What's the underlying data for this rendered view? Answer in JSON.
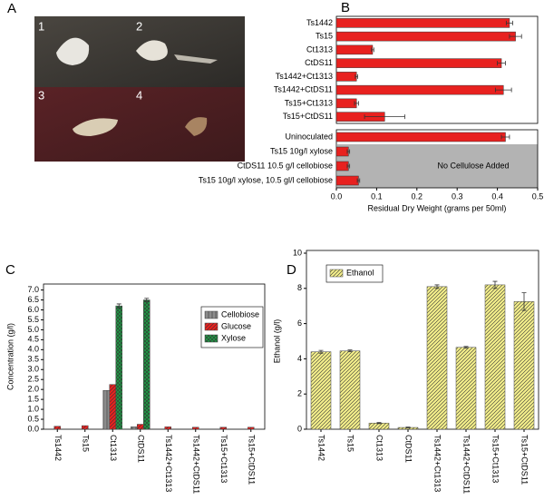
{
  "photo": {
    "panel": "A",
    "labels": [
      "1",
      "2",
      "3",
      "4"
    ]
  },
  "chart_data": [
    {
      "type": "hbar",
      "panel": "B",
      "x_label": "Residual Dry Weight (grams per 50ml)",
      "categories": [
        "Ts1442",
        "Ts15",
        "Ct1313",
        "CtDS11",
        "Ts1442+Ct1313",
        "Ts1442+CtDS11",
        "Ts15+Ct1313",
        "Ts15+CtDS11",
        "Uninoculated",
        "Ts15 10g/l xylose",
        "CtDS11 10.5 g/l cellobiose",
        "Ts15 10g/l xylose, 10.5 gl/l cellobiose"
      ],
      "series": [
        {
          "name": "Residual Dry Weight",
          "color": "#e8211f",
          "values": [
            0.43,
            0.445,
            0.09,
            0.41,
            0.05,
            0.415,
            0.05,
            0.12,
            0.42,
            0.03,
            0.03,
            0.055
          ],
          "errors": [
            0.008,
            0.015,
            0.003,
            0.01,
            0.003,
            0.02,
            0.005,
            0.05,
            0.01,
            0.003,
            0.003,
            0.003
          ]
        }
      ],
      "annotation": "No Cellulose Added",
      "xlim": [
        0,
        0.5
      ],
      "xticks": [
        {
          "value": 0,
          "label": "0.0"
        },
        0.1,
        0.2,
        0.3,
        0.4,
        0.5
      ]
    },
    {
      "type": "bar",
      "panel": "C",
      "y_label": "Concentration (g/l)",
      "categories": [
        "Ts1442",
        "Ts15",
        "Ct1313",
        "CtDS11",
        "Ts1442+Ct1313",
        "Ts1442+CtDS11",
        "Ts15+Ct1313",
        "Ts15+CtDS11"
      ],
      "series": [
        {
          "name": "Cellobiose",
          "color": "#8c8c8c",
          "hatch": "vertical",
          "values": [
            null,
            null,
            1.95,
            0.12,
            null,
            null,
            null,
            null
          ]
        },
        {
          "name": "Glucose",
          "color": "#e8211f",
          "hatch": "diagonal",
          "values": [
            0.15,
            0.18,
            2.25,
            0.25,
            0.12,
            0.1,
            0.1,
            0.1
          ]
        },
        {
          "name": "Xylose",
          "color": "#1f9a45",
          "hatch": "cross",
          "values": [
            null,
            null,
            6.2,
            6.5,
            null,
            null,
            null,
            null
          ],
          "errors": [
            null,
            null,
            0.1,
            0.08,
            null,
            null,
            null,
            null
          ]
        }
      ],
      "ylim": [
        0,
        7.3
      ],
      "yticks": [
        {
          "value": 0,
          "label": "0.0"
        },
        0.5,
        {
          "value": 1,
          "label": "1.0"
        },
        1.5,
        {
          "value": 2,
          "label": "2.0"
        },
        2.5,
        {
          "value": 3,
          "label": "3.0"
        },
        3.5,
        {
          "value": 4,
          "label": "4.0"
        },
        4.5,
        {
          "value": 5,
          "label": "5.0"
        },
        5.5,
        {
          "value": 6,
          "label": "6.0"
        },
        6.5,
        {
          "value": 7,
          "label": "7.0"
        }
      ]
    },
    {
      "type": "bar",
      "panel": "D",
      "y_label": "Ethanol (g/l)",
      "categories": [
        "Ts1442",
        "Ts15",
        "Ct1313",
        "CtDS11",
        "Ts1442+Ct1313",
        "Ts1442+CtDS11",
        "Ts15+Ct1313",
        "Ts15+CtDS11"
      ],
      "series": [
        {
          "name": "Ethanol",
          "color": "#f3ee8a",
          "hatch": "diagonal",
          "values": [
            4.4,
            4.45,
            0.35,
            0.1,
            8.1,
            4.65,
            8.2,
            7.25
          ],
          "errors": [
            0.08,
            0.05,
            0.03,
            0.02,
            0.1,
            0.05,
            0.2,
            0.5
          ]
        }
      ],
      "ylim": [
        0,
        10
      ],
      "yticks": [
        0,
        2,
        4,
        6,
        8,
        10
      ]
    }
  ]
}
